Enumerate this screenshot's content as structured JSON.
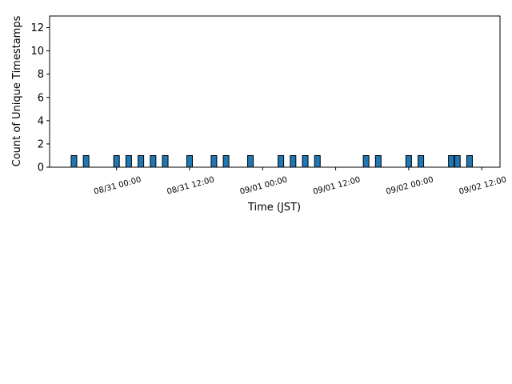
{
  "chart_data": {
    "type": "bar",
    "title": "",
    "xlabel": "Time (JST)",
    "ylabel": "Count of Unique Timestamps",
    "ylim": [
      0,
      13
    ],
    "yticks": [
      0,
      2,
      4,
      6,
      8,
      10,
      12
    ],
    "xlim": [
      "08/30 13:00",
      "09/02 15:00"
    ],
    "xticks": [
      "08/31 00:00",
      "08/31 12:00",
      "09/01 00:00",
      "09/01 12:00",
      "09/02 00:00",
      "09/02 12:00"
    ],
    "xtick_rotation": 15,
    "grid": false,
    "bar_color": "#1f77b4",
    "edge_color": "#000000",
    "bins": [
      {
        "x": "08/30 17:00",
        "value": 1
      },
      {
        "x": "08/30 19:00",
        "value": 1
      },
      {
        "x": "08/31 00:00",
        "value": 1
      },
      {
        "x": "08/31 02:00",
        "value": 1
      },
      {
        "x": "08/31 04:00",
        "value": 1
      },
      {
        "x": "08/31 06:00",
        "value": 1
      },
      {
        "x": "08/31 08:00",
        "value": 1
      },
      {
        "x": "08/31 12:00",
        "value": 1
      },
      {
        "x": "08/31 16:00",
        "value": 1
      },
      {
        "x": "08/31 18:00",
        "value": 1
      },
      {
        "x": "08/31 22:00",
        "value": 1
      },
      {
        "x": "09/01 03:00",
        "value": 1
      },
      {
        "x": "09/01 05:00",
        "value": 1
      },
      {
        "x": "09/01 07:00",
        "value": 1
      },
      {
        "x": "09/01 09:00",
        "value": 1
      },
      {
        "x": "09/01 17:00",
        "value": 1
      },
      {
        "x": "09/01 19:00",
        "value": 1
      },
      {
        "x": "09/02 00:00",
        "value": 1
      },
      {
        "x": "09/02 02:00",
        "value": 1
      },
      {
        "x": "09/02 07:00",
        "value": 1
      },
      {
        "x": "09/02 08:00",
        "value": 1
      },
      {
        "x": "09/02 10:00",
        "value": 1
      }
    ]
  }
}
